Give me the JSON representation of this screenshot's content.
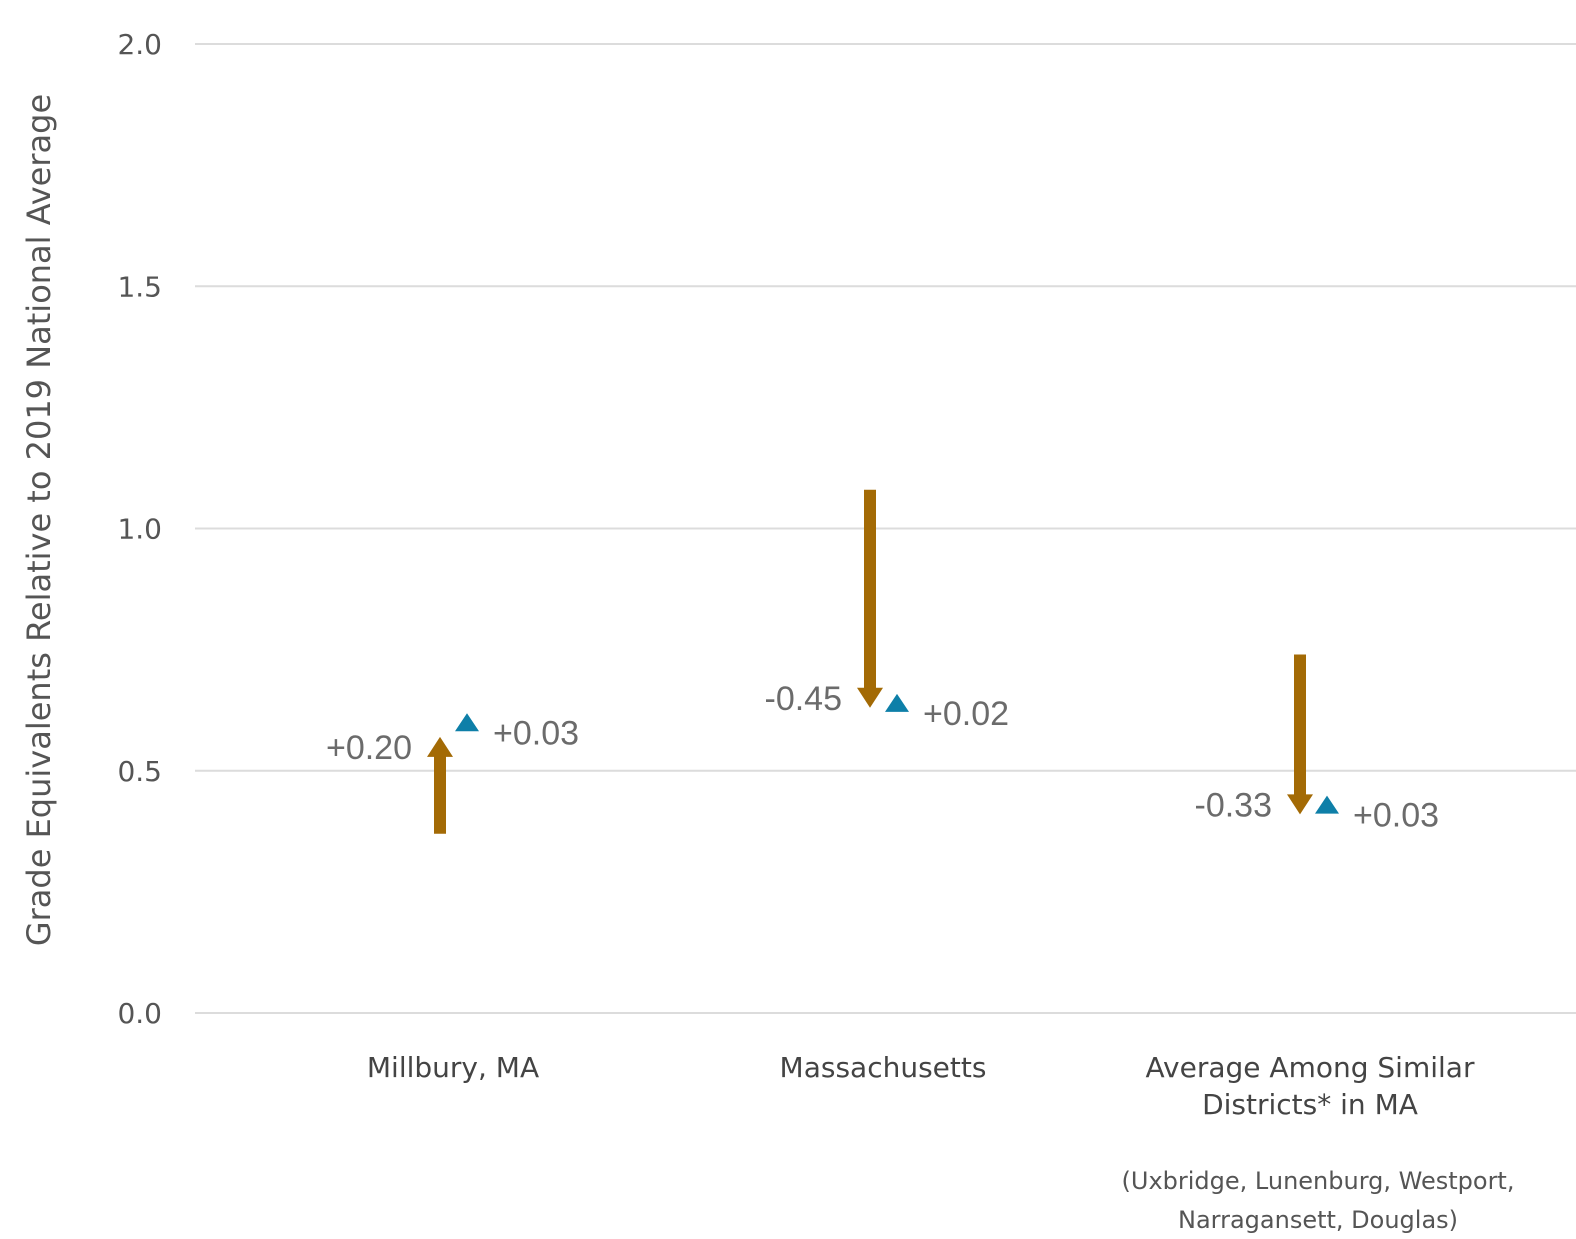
{
  "chart_data": {
    "type": "arrow-dot",
    "ylabel": "Grade Equivalents Relative to 2019 National Average",
    "ylim": [
      0,
      2.0
    ],
    "yticks": [
      0.0,
      0.5,
      1.0,
      1.5,
      2.0
    ],
    "ytick_labels": [
      "0.0",
      "0.5",
      "1.0",
      "1.5",
      "2.0"
    ],
    "grid": true,
    "colors": {
      "arrow": "#a36a05",
      "marker": "#0e7fa8"
    },
    "categories": [
      {
        "label_lines": [
          "Millbury, MA"
        ],
        "note_lines": [],
        "arrow": {
          "from": 0.37,
          "to": 0.57,
          "label": "+0.20"
        },
        "marker": {
          "value": 0.6,
          "label": "+0.03"
        }
      },
      {
        "label_lines": [
          "Massachusetts"
        ],
        "note_lines": [],
        "arrow": {
          "from": 1.08,
          "to": 0.63,
          "label": "-0.45"
        },
        "marker": {
          "value": 0.64,
          "label": "+0.02"
        }
      },
      {
        "label_lines": [
          "Average Among Similar",
          "Districts* in MA"
        ],
        "note_lines": [
          "(Uxbridge, Lunenburg, Westport,",
          "Narragansett, Douglas)"
        ],
        "arrow": {
          "from": 0.74,
          "to": 0.41,
          "label": "-0.33"
        },
        "marker": {
          "value": 0.43,
          "label": "+0.03"
        }
      }
    ]
  }
}
